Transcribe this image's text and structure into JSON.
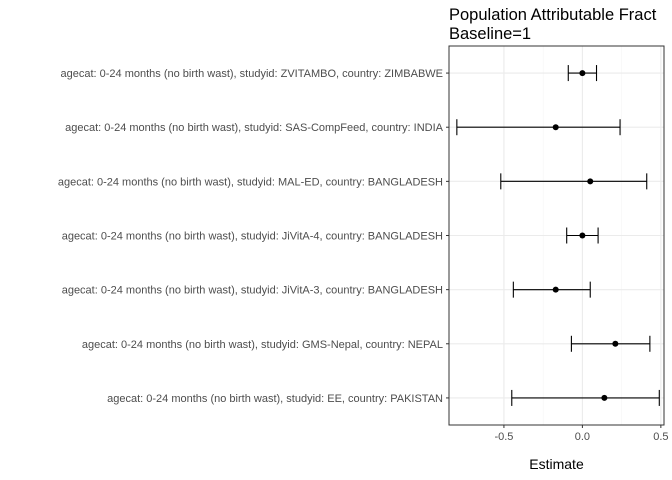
{
  "chart_data": {
    "type": "forest",
    "title": [
      "Population Attributable Fract",
      "Baseline=1"
    ],
    "xlabel": "Estimate",
    "xlim": [
      -0.85,
      0.52
    ],
    "xticks": [
      -0.5,
      0.0,
      0.5
    ],
    "xtick_labels": [
      "-0.5",
      "0.0",
      "0.5"
    ],
    "grid": true,
    "rows": [
      {
        "label": "agecat: 0-24 months (no birth wast), studyid: ZVITAMBO, country: ZIMBABWE",
        "estimate": 0.0,
        "lower": -0.09,
        "upper": 0.09
      },
      {
        "label": "agecat: 0-24 months (no birth wast), studyid: SAS-CompFeed, country: INDIA",
        "estimate": -0.17,
        "lower": -0.8,
        "upper": 0.24
      },
      {
        "label": "agecat: 0-24 months (no birth wast), studyid: MAL-ED, country: BANGLADESH",
        "estimate": 0.05,
        "lower": -0.52,
        "upper": 0.41
      },
      {
        "label": "agecat: 0-24 months (no birth wast), studyid: JiVitA-4, country: BANGLADESH",
        "estimate": 0.0,
        "lower": -0.1,
        "upper": 0.1
      },
      {
        "label": "agecat: 0-24 months (no birth wast), studyid: JiVitA-3, country: BANGLADESH",
        "estimate": -0.17,
        "lower": -0.44,
        "upper": 0.05
      },
      {
        "label": "agecat: 0-24 months (no birth wast), studyid: GMS-Nepal, country: NEPAL",
        "estimate": 0.21,
        "lower": -0.07,
        "upper": 0.43
      },
      {
        "label": "agecat: 0-24 months (no birth wast), studyid: EE, country: PAKISTAN",
        "estimate": 0.14,
        "lower": -0.45,
        "upper": 0.49
      }
    ],
    "colors": {
      "panel_border": "#333333",
      "grid_major": "#ebebeb",
      "grid_minor": "#f5f5f5",
      "mark": "#000000",
      "label": "#4d4d4d"
    }
  }
}
